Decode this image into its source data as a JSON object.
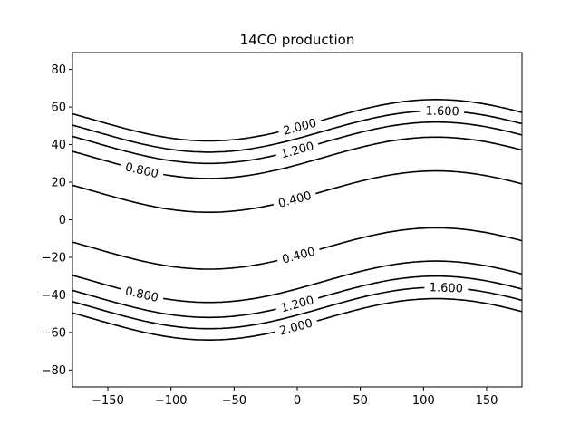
{
  "chart_data": {
    "type": "contour",
    "title": "14CO production",
    "xlabel": "",
    "ylabel": "",
    "xlim": [
      -178,
      178
    ],
    "ylim": [
      -89,
      89
    ],
    "x_ticks": [
      -150,
      -100,
      -50,
      0,
      50,
      100,
      150
    ],
    "x_tick_labels": [
      "−150",
      "−100",
      "−50",
      "0",
      "50",
      "100",
      "150"
    ],
    "y_ticks": [
      -80,
      -60,
      -40,
      -20,
      0,
      20,
      40,
      60,
      80
    ],
    "y_tick_labels": [
      "−80",
      "−60",
      "−40",
      "−20",
      "0",
      "20",
      "40",
      "60",
      "80"
    ],
    "grid": false,
    "line_color": "#000000",
    "contour_shape": {
      "amplitude_deg": 11,
      "center_lon": 20,
      "period_deg": 360
    },
    "levels": [
      {
        "value": 0.4,
        "label": "0.400",
        "center_lat_north": 15.0,
        "center_lat_south": -15.3,
        "label_lon_north": -2,
        "label_lon_south": 1
      },
      {
        "value": 0.8,
        "label": "0.800",
        "center_lat_north": 33.0,
        "center_lat_south": -33.0,
        "label_lon_north": -123,
        "label_lon_south": -123
      },
      {
        "value": 1.2,
        "label": "1.200",
        "center_lat_north": 41.0,
        "center_lat_south": -41.0,
        "label_lon_north": 0,
        "label_lon_south": 0
      },
      {
        "value": 1.6,
        "label": "1.600",
        "center_lat_north": 47.0,
        "center_lat_south": -47.0,
        "label_lon_north": 115,
        "label_lon_south": 118
      },
      {
        "value": 2.0,
        "label": "2.000",
        "center_lat_north": 53.0,
        "center_lat_south": -53.0,
        "label_lon_north": 2,
        "label_lon_south": -1
      }
    ]
  }
}
